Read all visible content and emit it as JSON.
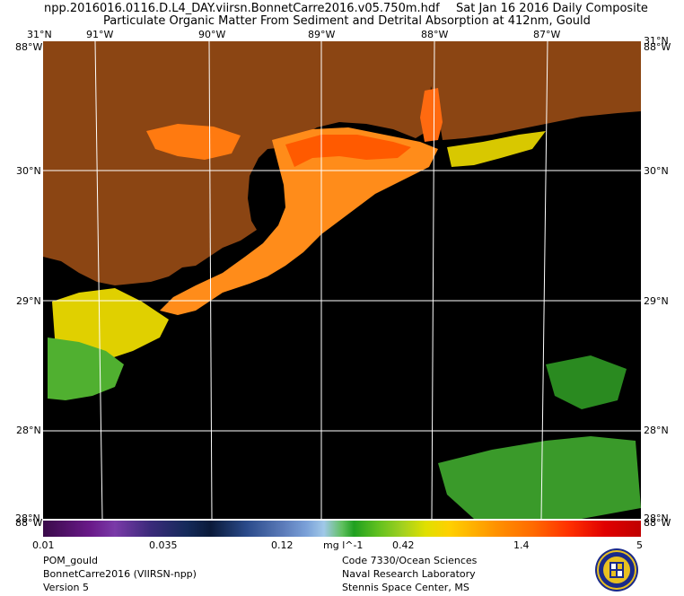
{
  "header": {
    "filename": "npp.2016016.0116.D.L4_DAY.viirsn.BonnetCarre2016.v05.750m.hdf",
    "date": "Sat Jan 16 2016 Daily Composite",
    "product": "Particulate Organic Matter From Sediment and Detrital Absorption at 412nm, Gould"
  },
  "map": {
    "lon_labels": [
      "91°W",
      "90°W",
      "89°W",
      "88°W",
      "87°W"
    ],
    "lat_labels": [
      "30°N",
      "29°N",
      "28°N"
    ],
    "corner_top_lat": "31°N",
    "corner_bottom_lat": "28°N",
    "corner_top_lon": "88°W",
    "corner_bottom_lon": "88°W",
    "land_color": "#8b4513",
    "water_color": "#000000",
    "grid_color": "#ffffff"
  },
  "colorbar": {
    "ticks": [
      "0.01",
      "0.035",
      "0.12",
      "0.42",
      "1.4",
      "5"
    ],
    "units": "mg l^-1"
  },
  "footer": {
    "left": [
      "POM_gould",
      "BonnetCarre2016 (VIIRSN-npp)",
      "Version 5"
    ],
    "right": [
      "Code 7330/Ocean Sciences",
      "Naval Research Laboratory",
      "Stennis Space Center, MS"
    ]
  },
  "logo": {
    "icon": "nrl-seal-icon"
  }
}
